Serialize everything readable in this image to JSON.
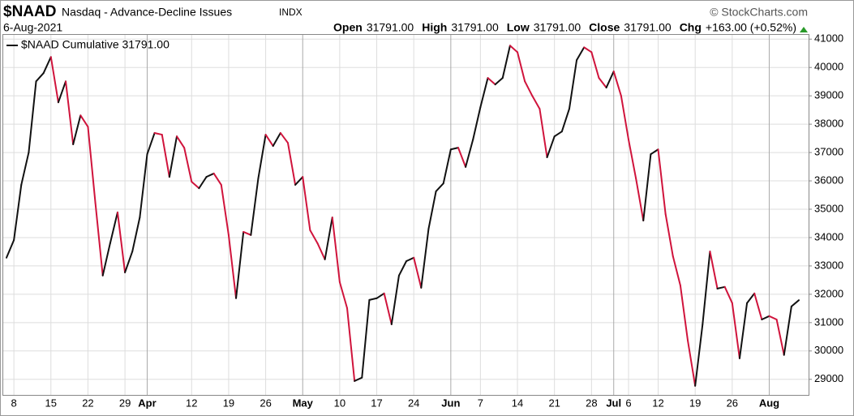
{
  "chart_data": {
    "type": "line",
    "symbol": "$NAAD",
    "title": "Nasdaq - Advance-Decline Issues",
    "exchange": "INDX",
    "watermark": "© StockCharts.com",
    "date": "6-Aug-2021",
    "quote": [
      {
        "label": "Open",
        "value": "31791.00"
      },
      {
        "label": "High",
        "value": "31791.00"
      },
      {
        "label": "Low",
        "value": "31791.00"
      },
      {
        "label": "Close",
        "value": "31791.00"
      },
      {
        "label": "Chg",
        "value": "+163.00 (+0.52%)"
      }
    ],
    "categories": [
      null,
      "8",
      null,
      null,
      null,
      null,
      "15",
      null,
      null,
      null,
      null,
      "22",
      null,
      null,
      null,
      null,
      "29",
      null,
      null,
      "Apr",
      null,
      null,
      null,
      null,
      null,
      "12",
      null,
      null,
      null,
      null,
      "19",
      null,
      null,
      null,
      null,
      "26",
      null,
      null,
      null,
      null,
      "May",
      null,
      null,
      null,
      null,
      "10",
      null,
      null,
      null,
      null,
      "17",
      null,
      null,
      null,
      null,
      "24",
      null,
      null,
      null,
      null,
      "Jun",
      null,
      null,
      null,
      "7",
      null,
      null,
      null,
      null,
      "14",
      null,
      null,
      null,
      null,
      "21",
      null,
      null,
      null,
      null,
      "28",
      null,
      null,
      "Jul",
      null,
      "6",
      null,
      null,
      null,
      "12",
      null,
      null,
      null,
      null,
      "19",
      null,
      null,
      null,
      null,
      "26",
      null,
      null,
      null,
      null,
      "Aug",
      null,
      null,
      null,
      null
    ],
    "series": [
      {
        "name": "$NAAD Cumulative 31791.00",
        "up_color": "#111111",
        "down_color": "#d0143c",
        "values": [
          33290,
          33910,
          35860,
          37000,
          39510,
          39800,
          40370,
          38770,
          39510,
          37290,
          38310,
          37910,
          35230,
          32660,
          33800,
          34890,
          32770,
          33510,
          34710,
          36940,
          37690,
          37630,
          36140,
          37570,
          37170,
          35970,
          35740,
          36140,
          36260,
          35860,
          34090,
          31860,
          34200,
          34090,
          36090,
          37630,
          37230,
          37690,
          37340,
          35860,
          36140,
          34260,
          33800,
          33230,
          34710,
          32430,
          31510,
          28940,
          29060,
          31800,
          31860,
          32030,
          30940,
          32660,
          33170,
          33290,
          32230,
          34310,
          35630,
          35910,
          37110,
          37170,
          36490,
          37460,
          38600,
          39630,
          39400,
          39630,
          40770,
          40540,
          39510,
          39000,
          38540,
          36830,
          37570,
          37740,
          38540,
          40260,
          40710,
          40540,
          39630,
          39290,
          39860,
          39000,
          37460,
          36090,
          34600,
          36940,
          37110,
          34830,
          33340,
          32310,
          30370,
          28770,
          30940,
          33510,
          32200,
          32260,
          31690,
          29740,
          31690,
          32030,
          31110,
          31230,
          31110,
          29860,
          31570,
          31791
        ]
      }
    ],
    "ylim": [
      28450,
      41150
    ],
    "yticks": [
      29000,
      30000,
      31000,
      32000,
      33000,
      34000,
      35000,
      36000,
      37000,
      38000,
      39000,
      40000,
      41000
    ],
    "grid": true
  }
}
